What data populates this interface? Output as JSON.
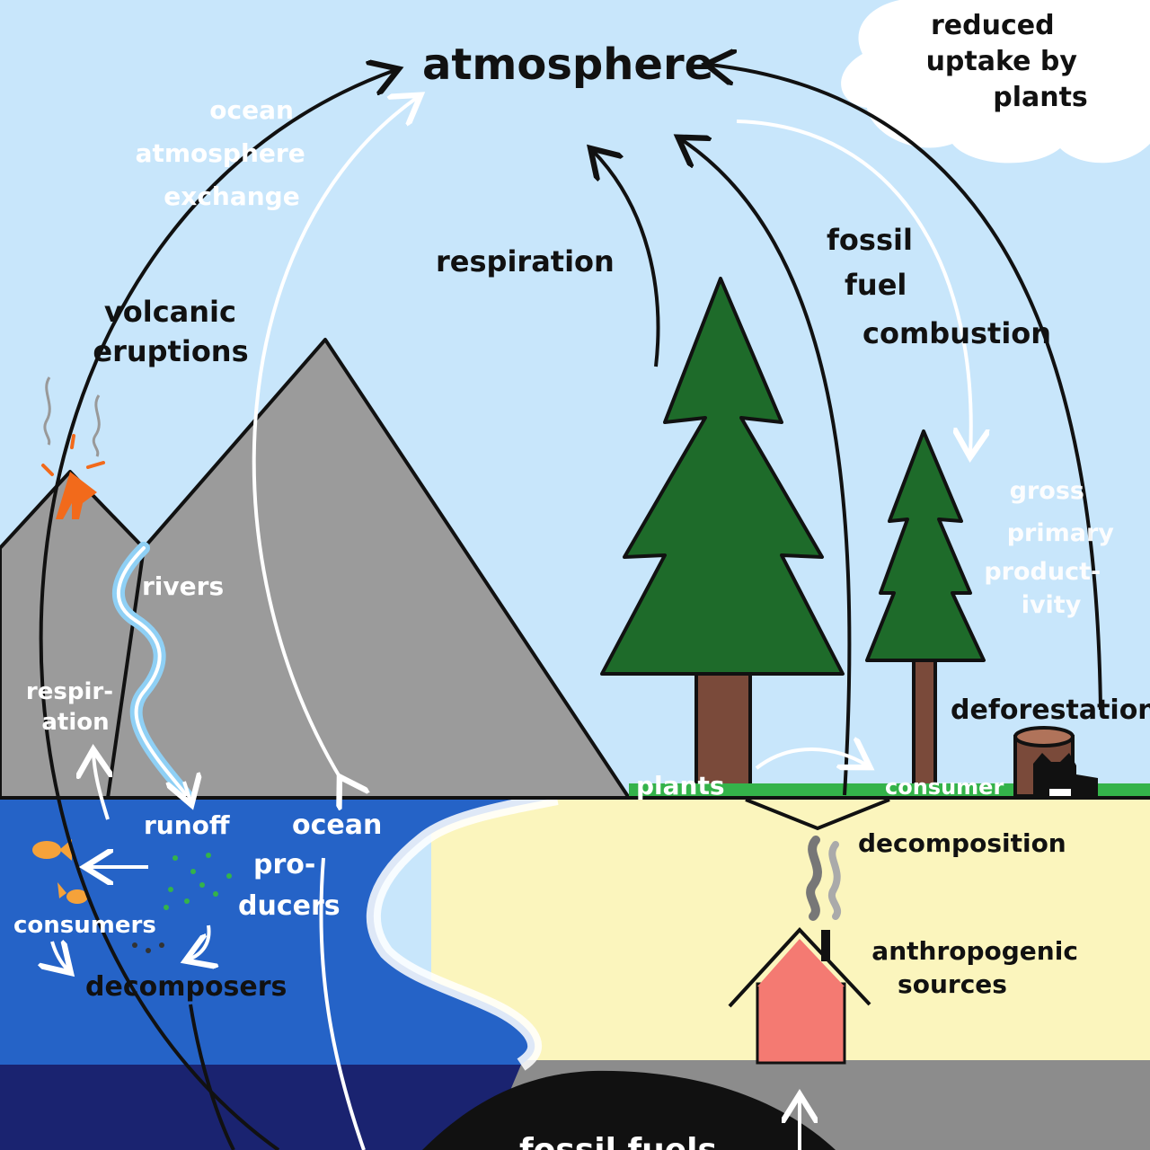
{
  "labels": {
    "atmosphere": "atmosphere",
    "reduced_uptake": [
      "reduced",
      "uptake by",
      "plants"
    ],
    "ocean_atmosphere_exchange": [
      "ocean",
      "atmosphere",
      "exchange"
    ],
    "respiration_top": "respiration",
    "fossil_fuel_combustion": [
      "fossil",
      "fuel",
      "combustion"
    ],
    "volcanic_eruptions": [
      "volcanic",
      "eruptions"
    ],
    "gross_primary_productivity": [
      "gross",
      "primary",
      "product-",
      "ivity"
    ],
    "rivers": "rivers",
    "respiration_left": [
      "respir-",
      "ation"
    ],
    "deforestation": "deforestation",
    "plants": "plants",
    "consumer": "consumer",
    "runoff": "runoff",
    "ocean_producers": [
      "ocean",
      "pro-",
      "ducers"
    ],
    "decomposition": "decomposition",
    "consumers": "consumers",
    "decomposers": "decomposers",
    "anthropogenic_sources": [
      "anthropogenic",
      "sources"
    ],
    "fossil_fuels": "fossil fuels"
  },
  "colors": {
    "sky": "#c8e6fb",
    "cloud": "#ffffff",
    "mountain": "#9b9b9b",
    "tree_green": "#1e6b2a",
    "trunk": "#7a4a3a",
    "grass": "#34b34a",
    "ocean": "#2563c7",
    "deep_ocean": "#1a2370",
    "sand": "#fbf5bd",
    "ground": "#8c8c8c",
    "fossil": "#111111",
    "house": "#f47a72",
    "lava": "#f26a1b",
    "river": "#8fd0f5",
    "fish": "#f5a23a"
  },
  "icons": [
    "volcano-icon",
    "fish-icon",
    "house-icon",
    "tree-icon",
    "stump-icon",
    "cat-icon",
    "smoke-icon",
    "cloud-icon"
  ]
}
